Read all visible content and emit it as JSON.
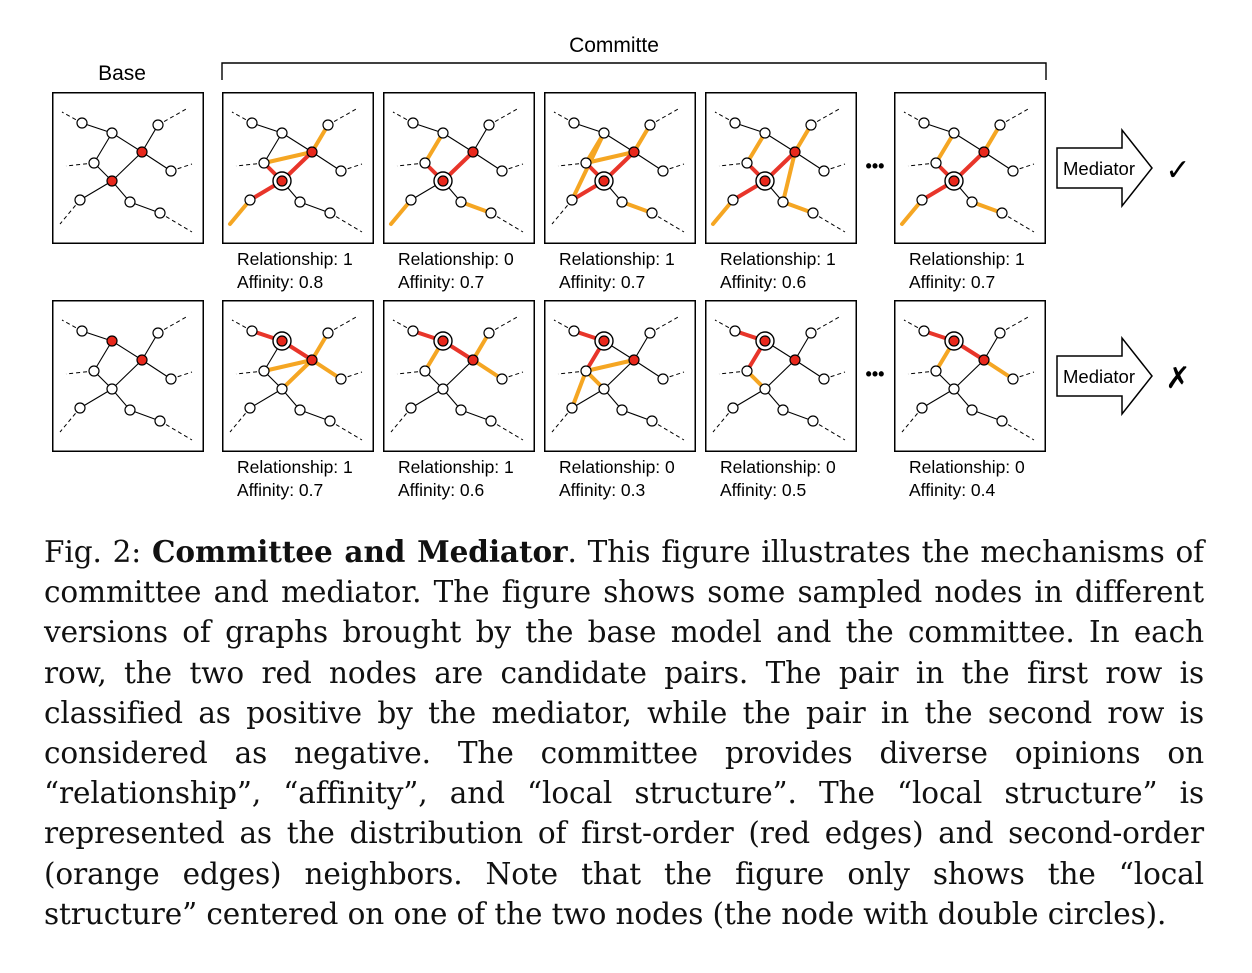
{
  "figure": {
    "base_label": "Base",
    "committee_label": "Committe",
    "mediator_label": "Mediator",
    "ellipsis": "•••",
    "rows": [
      {
        "verdict": "✓",
        "panels": [
          {
            "relationship": "Relationship: 1",
            "affinity": "Affinity: 0.8"
          },
          {
            "relationship": "Relationship: 0",
            "affinity": "Affinity: 0.7"
          },
          {
            "relationship": "Relationship: 1",
            "affinity": "Affinity: 0.7"
          },
          {
            "relationship": "Relationship: 1",
            "affinity": "Affinity: 0.6"
          },
          {
            "relationship": "Relationship: 1",
            "affinity": "Affinity: 0.7"
          }
        ]
      },
      {
        "verdict": "✗",
        "panels": [
          {
            "relationship": "Relationship: 1",
            "affinity": "Affinity: 0.7"
          },
          {
            "relationship": "Relationship: 1",
            "affinity": "Affinity: 0.6"
          },
          {
            "relationship": "Relationship: 0",
            "affinity": "Affinity: 0.3"
          },
          {
            "relationship": "Relationship: 0",
            "affinity": "Affinity: 0.5"
          },
          {
            "relationship": "Relationship: 0",
            "affinity": "Affinity: 0.4"
          }
        ]
      }
    ],
    "colors": {
      "red_node": "#e8281c",
      "first_order_edge": "#e8352a",
      "second_order_edge": "#f5a623",
      "plain_edge": "#000000"
    }
  },
  "caption": {
    "prefix": "Fig. 2:",
    "title": "Committee and Mediator",
    "body": ". This figure illustrates the mechanisms of committee and mediator. The figure shows some sampled nodes in different versions of graphs brought by the base model and the committee. In each row, the two red nodes are candidate pairs. The pair in the first row is classified as positive by the mediator, while the pair in the second row is considered as negative. The committee provides diverse opinions on “relationship”, “affinity”, and “local structure”. The “local structure” is represented as the distribution of first-order (red edges) and second-order (orange edges) neighbors. Note that the figure only shows the “local structure” centered on one of the two nodes (the node with double circles)."
  }
}
